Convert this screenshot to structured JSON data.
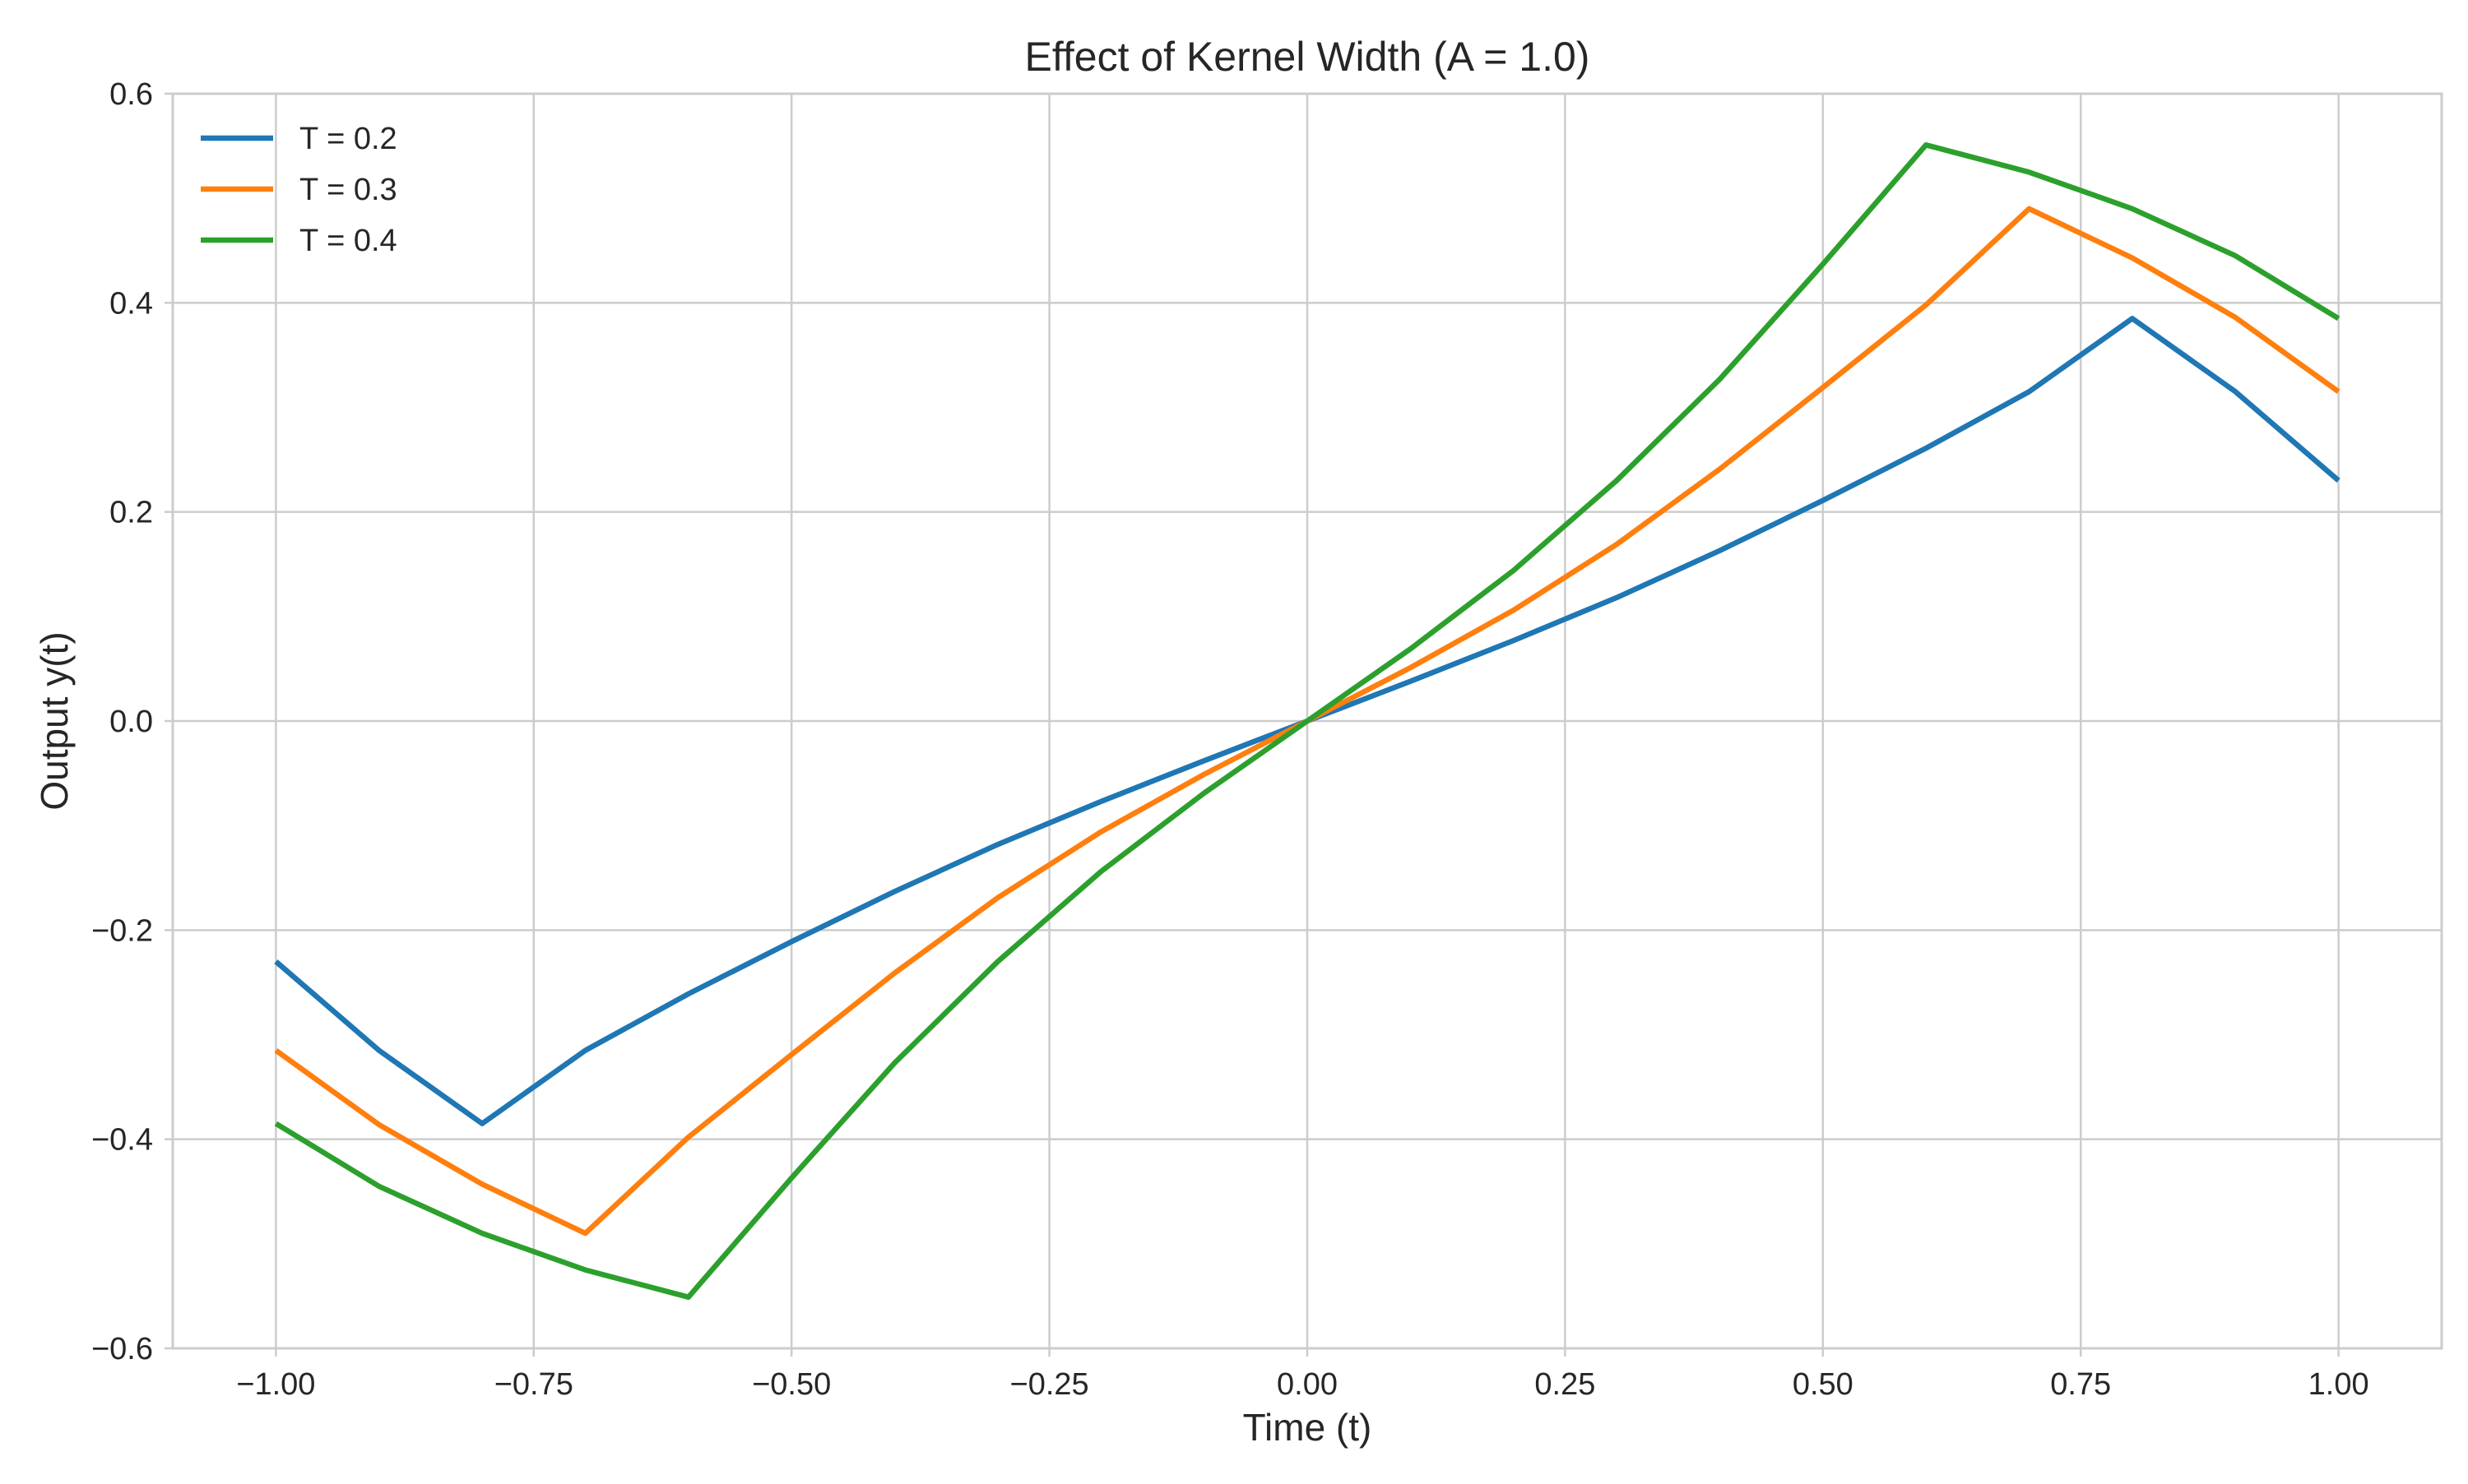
{
  "chart_data": {
    "type": "line",
    "title": "Effect of Kernel Width (A = 1.0)",
    "xlabel": "Time (t)",
    "ylabel": "Output y(t)",
    "xlim": [
      -1.1,
      1.1
    ],
    "ylim": [
      -0.6,
      0.6
    ],
    "grid": true,
    "legend_position": "top-left",
    "x_ticks": [
      -1.0,
      -0.75,
      -0.5,
      -0.25,
      0.0,
      0.25,
      0.5,
      0.75,
      1.0
    ],
    "x_tick_labels": [
      "−1.00",
      "−0.75",
      "−0.50",
      "−0.25",
      "0.00",
      "0.25",
      "0.50",
      "0.75",
      "1.00"
    ],
    "y_ticks": [
      0.6,
      0.4,
      0.2,
      0.0,
      -0.2,
      -0.4,
      -0.6
    ],
    "y_tick_labels": [
      "0.6",
      "0.4",
      "0.2",
      "0.0",
      "−0.2",
      "−0.4",
      "−0.6"
    ],
    "series": [
      {
        "name": "T = 0.2",
        "color": "#1f77b4",
        "x": [
          -1.0,
          -0.9,
          -0.8,
          -0.7,
          -0.6,
          -0.5,
          -0.4,
          -0.3,
          -0.2,
          -0.1,
          0.0,
          0.1,
          0.2,
          0.3,
          0.4,
          0.5,
          0.6,
          0.7,
          0.8,
          0.9,
          1.0
        ],
        "y": [
          -0.23,
          -0.315,
          -0.385,
          -0.315,
          -0.261,
          -0.211,
          -0.163,
          -0.118,
          -0.077,
          -0.038,
          0.0,
          0.038,
          0.077,
          0.118,
          0.163,
          0.211,
          0.261,
          0.315,
          0.385,
          0.315,
          0.23
        ]
      },
      {
        "name": "T = 0.3",
        "color": "#ff7f0e",
        "x": [
          -1.0,
          -0.9,
          -0.8,
          -0.7,
          -0.6,
          -0.5,
          -0.4,
          -0.3,
          -0.2,
          -0.1,
          0.0,
          0.1,
          0.2,
          0.3,
          0.4,
          0.5,
          0.6,
          0.7,
          0.8,
          0.9,
          1.0
        ],
        "y": [
          -0.315,
          -0.386,
          -0.443,
          -0.49,
          -0.398,
          -0.319,
          -0.241,
          -0.169,
          -0.106,
          -0.051,
          0.0,
          0.051,
          0.106,
          0.169,
          0.241,
          0.319,
          0.398,
          0.49,
          0.443,
          0.386,
          0.315
        ]
      },
      {
        "name": "T = 0.4",
        "color": "#2ca02c",
        "x": [
          -1.0,
          -0.9,
          -0.8,
          -0.7,
          -0.6,
          -0.5,
          -0.4,
          -0.3,
          -0.2,
          -0.1,
          0.0,
          0.1,
          0.2,
          0.3,
          0.4,
          0.5,
          0.6,
          0.7,
          0.8,
          0.9,
          1.0
        ],
        "y": [
          -0.385,
          -0.445,
          -0.49,
          -0.525,
          -0.551,
          -0.437,
          -0.327,
          -0.23,
          -0.144,
          -0.069,
          0.0,
          0.069,
          0.144,
          0.23,
          0.327,
          0.437,
          0.551,
          0.525,
          0.49,
          0.445,
          0.385
        ]
      }
    ]
  }
}
